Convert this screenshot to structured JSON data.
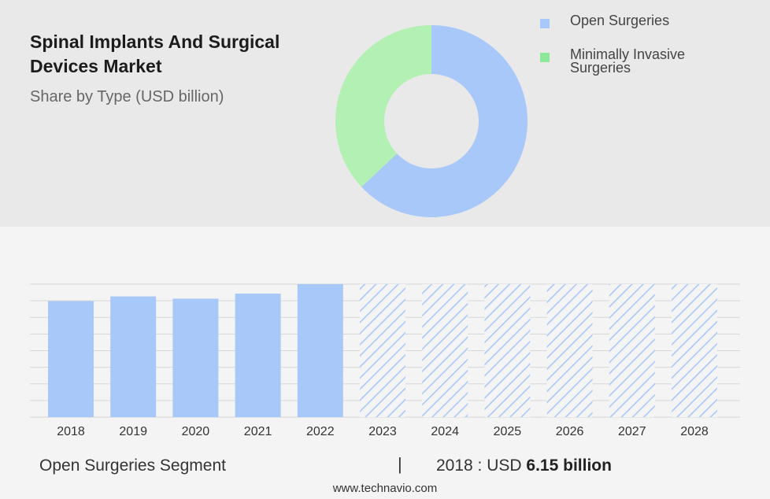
{
  "header": {
    "title": "Spinal Implants And Surgical Devices Market",
    "subtitle": "Share by Type (USD billion)"
  },
  "legend": [
    {
      "label": "Open Surgeries",
      "color": "#a8c8fa"
    },
    {
      "label": "Minimally Invasive Surgeries",
      "color": "#8fe89a"
    }
  ],
  "chart_data": [
    {
      "type": "pie",
      "variant": "donut",
      "slices": [
        {
          "name": "Open Surgeries",
          "value": 63,
          "color": "#a8c8fa"
        },
        {
          "name": "Minimally Invasive Surgeries",
          "value": 37,
          "color": "#b2f0b4"
        }
      ]
    },
    {
      "type": "bar",
      "categories": [
        "2018",
        "2019",
        "2020",
        "2021",
        "2022",
        "2023",
        "2024",
        "2025",
        "2026",
        "2027",
        "2028"
      ],
      "values": [
        6.15,
        6.4,
        6.28,
        6.55,
        7.05,
        7.05,
        7.05,
        7.05,
        7.05,
        7.05,
        7.05
      ],
      "forecast": [
        false,
        false,
        false,
        false,
        false,
        true,
        true,
        true,
        true,
        true,
        true
      ],
      "ylim": [
        0,
        7.05
      ],
      "grid": true,
      "colors": {
        "actual": "#a8c8fa",
        "forecast_hatch": "#a8c8fa"
      }
    }
  ],
  "footer": {
    "segment": "Open Surgeries Segment",
    "separator": "|",
    "year_label": "2018 : USD",
    "value": "6.15 billion",
    "url": "www.technavio.com"
  }
}
